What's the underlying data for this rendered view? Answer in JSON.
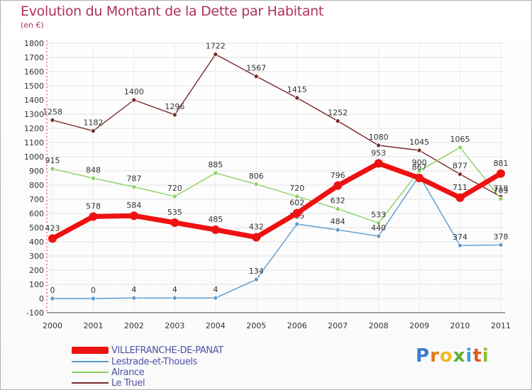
{
  "title": "Evolution du Montant de la Dette par Habitant",
  "subtitle": "(en €)",
  "logo": {
    "letters": [
      "P",
      "r",
      "o",
      "x",
      "i",
      "t",
      "i"
    ],
    "colors": [
      "#3a7ed0",
      "#e07b20",
      "#f0b820",
      "#60b030",
      "#3a9ed8",
      "#e05a20",
      "#8ac030"
    ]
  },
  "chart_data": {
    "type": "line",
    "x": [
      "2000",
      "2001",
      "2002",
      "2003",
      "2004",
      "2005",
      "2006",
      "2007",
      "2008",
      "2009",
      "2010",
      "2011"
    ],
    "yticks": [
      "1800",
      "1700",
      "1600",
      "1500",
      "1400",
      "1300",
      "1200",
      "1100",
      "1000",
      "900",
      "800",
      "700",
      "600",
      "500",
      "400",
      "300",
      "200",
      "100",
      "0",
      "-100"
    ],
    "ylim": [
      -100,
      1800
    ],
    "grid": true,
    "legend_placement": "bottom-left",
    "series": [
      {
        "name": "VILLEFRANCHE-DE-PANAT",
        "color": "#ee1111",
        "values": [
          423,
          578,
          584,
          535,
          485,
          432,
          602,
          796,
          953,
          850,
          711,
          881
        ],
        "labels": [
          "423",
          "578",
          "584",
          "535",
          "485",
          "432",
          "602",
          "796",
          "953",
          "",
          "711",
          "881"
        ]
      },
      {
        "name": "Lestrade-et-Thouels",
        "color": "#5a9ad0",
        "values": [
          0,
          0,
          4,
          4,
          4,
          134,
          525,
          484,
          440,
          867,
          374,
          378
        ],
        "labels": [
          "0",
          "0",
          "4",
          "4",
          "4",
          "134",
          "525",
          "484",
          "440",
          "867",
          "374",
          "378"
        ]
      },
      {
        "name": "Alrance",
        "color": "#8ad060",
        "values": [
          915,
          848,
          787,
          720,
          885,
          806,
          720,
          632,
          533,
          900,
          1065,
          703
        ],
        "labels": [
          "915",
          "848",
          "787",
          "720",
          "885",
          "806",
          "720",
          "632",
          "533",
          "900",
          "1065",
          "703"
        ]
      },
      {
        "name": "Le Truel",
        "color": "#7a2a2a",
        "values": [
          1258,
          1182,
          1400,
          1296,
          1722,
          1567,
          1415,
          1252,
          1080,
          1045,
          877,
          718
        ],
        "labels": [
          "1258",
          "1182",
          "1400",
          "1296",
          "1722",
          "1567",
          "1415",
          "1252",
          "1080",
          "1045",
          "877",
          "718"
        ]
      }
    ]
  }
}
